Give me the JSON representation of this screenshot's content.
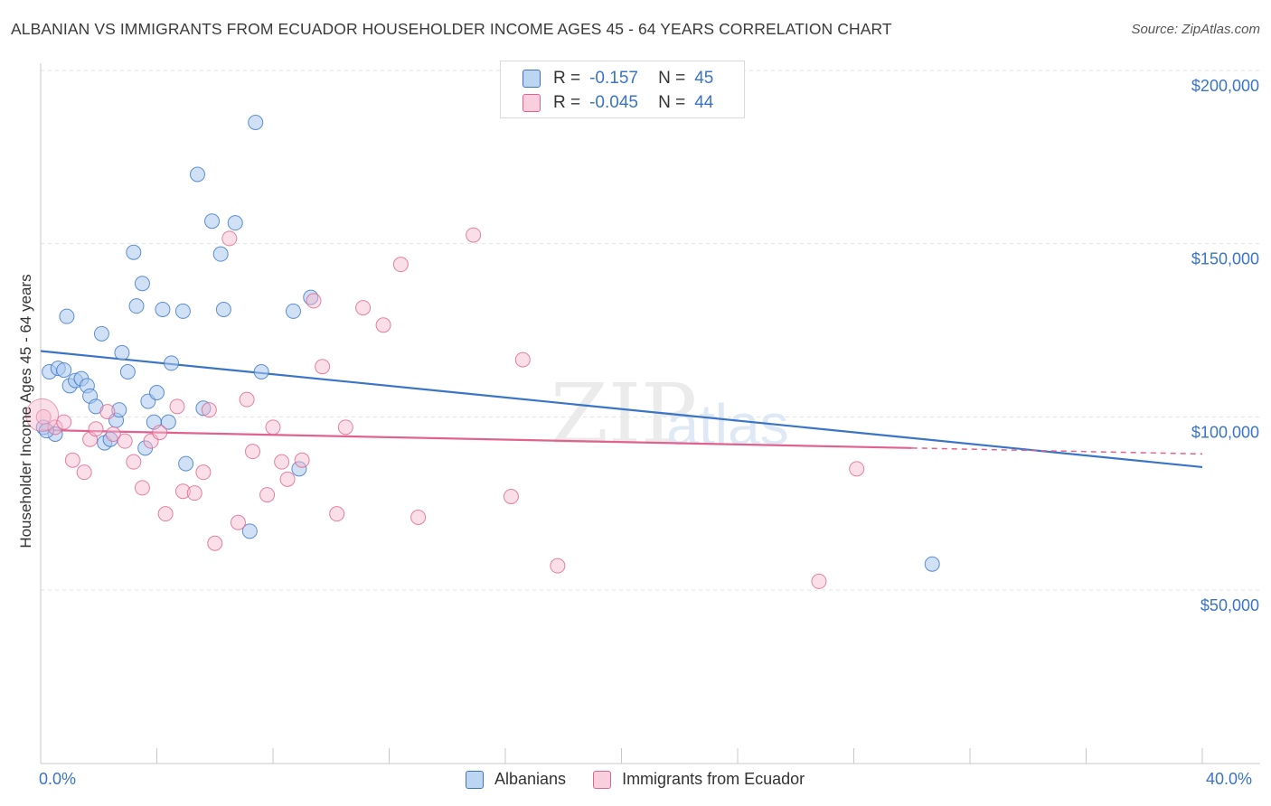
{
  "title": "ALBANIAN VS IMMIGRANTS FROM ECUADOR HOUSEHOLDER INCOME AGES 45 - 64 YEARS CORRELATION CHART",
  "source": "Source: ZipAtlas.com",
  "legend_stats": {
    "r_label": "R =",
    "n_label": "N =",
    "rows": [
      {
        "r": "-0.157",
        "n": "45"
      },
      {
        "r": "-0.045",
        "n": "44"
      }
    ]
  },
  "x_axis": {
    "min_label": "0.0%",
    "max_label": "40.0%"
  },
  "colors": {
    "blue": "#3a74c9",
    "blue_fill": "#a9c8ef",
    "pink": "#e0638f",
    "pink_fill": "#f6b9cd",
    "grid": "#e3e3e3",
    "axis_text": "#3a74c9"
  },
  "chart_data": {
    "type": "scatter",
    "title": "ALBANIAN VS IMMIGRANTS FROM ECUADOR HOUSEHOLDER INCOME AGES 45 - 64 YEARS CORRELATION CHART",
    "xlabel": "",
    "ylabel": "Householder Income Ages 45 - 64 years",
    "xlim": [
      0,
      40
    ],
    "ylim": [
      0,
      205000
    ],
    "y_ticks": [
      {
        "value": 50000,
        "label": "$50,000"
      },
      {
        "value": 100000,
        "label": "$100,000"
      },
      {
        "value": 150000,
        "label": "$150,000"
      },
      {
        "value": 200000,
        "label": "$200,000"
      }
    ],
    "legend": "bottom-center",
    "grid": true,
    "series": [
      {
        "name": "Albanians",
        "color": "#3a74c9",
        "trend": {
          "x0": 0,
          "y0": 119000,
          "x1": 40,
          "y1": 85500
        },
        "points": [
          [
            0.1,
            97000
          ],
          [
            0.3,
            113000
          ],
          [
            0.5,
            95000
          ],
          [
            0.6,
            114000
          ],
          [
            0.8,
            113500
          ],
          [
            0.9,
            129000
          ],
          [
            1.0,
            109000
          ],
          [
            1.2,
            110500
          ],
          [
            1.4,
            111000
          ],
          [
            1.6,
            109000
          ],
          [
            1.7,
            106000
          ],
          [
            1.9,
            103000
          ],
          [
            2.1,
            124000
          ],
          [
            2.2,
            92500
          ],
          [
            2.4,
            93500
          ],
          [
            2.6,
            99000
          ],
          [
            2.7,
            102000
          ],
          [
            2.8,
            118500
          ],
          [
            3.0,
            113000
          ],
          [
            3.2,
            147500
          ],
          [
            3.3,
            132000
          ],
          [
            3.5,
            138500
          ],
          [
            3.6,
            91000
          ],
          [
            3.7,
            104500
          ],
          [
            3.9,
            98500
          ],
          [
            4.0,
            107000
          ],
          [
            4.2,
            131000
          ],
          [
            4.4,
            98500
          ],
          [
            4.5,
            115500
          ],
          [
            4.9,
            130500
          ],
          [
            5.0,
            86500
          ],
          [
            5.4,
            170000
          ],
          [
            5.6,
            102500
          ],
          [
            5.9,
            156500
          ],
          [
            6.2,
            147000
          ],
          [
            6.3,
            131000
          ],
          [
            6.7,
            156000
          ],
          [
            7.2,
            67000
          ],
          [
            7.4,
            185000
          ],
          [
            7.6,
            113000
          ],
          [
            8.7,
            130500
          ],
          [
            8.9,
            85000
          ],
          [
            9.3,
            134500
          ],
          [
            30.7,
            57500
          ],
          [
            0.2,
            96000
          ]
        ]
      },
      {
        "name": "Immigrants from Ecuador",
        "color": "#e0638f",
        "trend": {
          "x0": 0,
          "y0": 96200,
          "x1": 30,
          "y1": 91000,
          "dash_to_x": 40,
          "dash_to_y": 89300
        },
        "points": [
          [
            0.1,
            100000
          ],
          [
            0.5,
            97000
          ],
          [
            0.8,
            98500
          ],
          [
            1.1,
            87500
          ],
          [
            1.5,
            84000
          ],
          [
            1.7,
            93500
          ],
          [
            1.9,
            96500
          ],
          [
            2.3,
            101500
          ],
          [
            2.5,
            95000
          ],
          [
            2.9,
            93000
          ],
          [
            3.2,
            87000
          ],
          [
            3.5,
            79500
          ],
          [
            3.8,
            93000
          ],
          [
            4.1,
            95500
          ],
          [
            4.3,
            72000
          ],
          [
            4.7,
            103000
          ],
          [
            4.9,
            78500
          ],
          [
            5.3,
            78000
          ],
          [
            5.6,
            84000
          ],
          [
            5.8,
            102000
          ],
          [
            6.0,
            63500
          ],
          [
            6.5,
            151500
          ],
          [
            6.8,
            69500
          ],
          [
            7.1,
            105000
          ],
          [
            7.3,
            90000
          ],
          [
            7.8,
            77500
          ],
          [
            8.0,
            97000
          ],
          [
            8.3,
            87000
          ],
          [
            8.5,
            82000
          ],
          [
            9.0,
            87500
          ],
          [
            9.4,
            133500
          ],
          [
            9.7,
            114500
          ],
          [
            10.2,
            72000
          ],
          [
            10.5,
            97000
          ],
          [
            11.1,
            131500
          ],
          [
            11.8,
            126500
          ],
          [
            12.4,
            144000
          ],
          [
            13.0,
            71000
          ],
          [
            14.9,
            152500
          ],
          [
            16.2,
            77000
          ],
          [
            16.6,
            116500
          ],
          [
            17.8,
            57000
          ],
          [
            26.8,
            52500
          ],
          [
            28.1,
            85000
          ]
        ]
      }
    ]
  }
}
